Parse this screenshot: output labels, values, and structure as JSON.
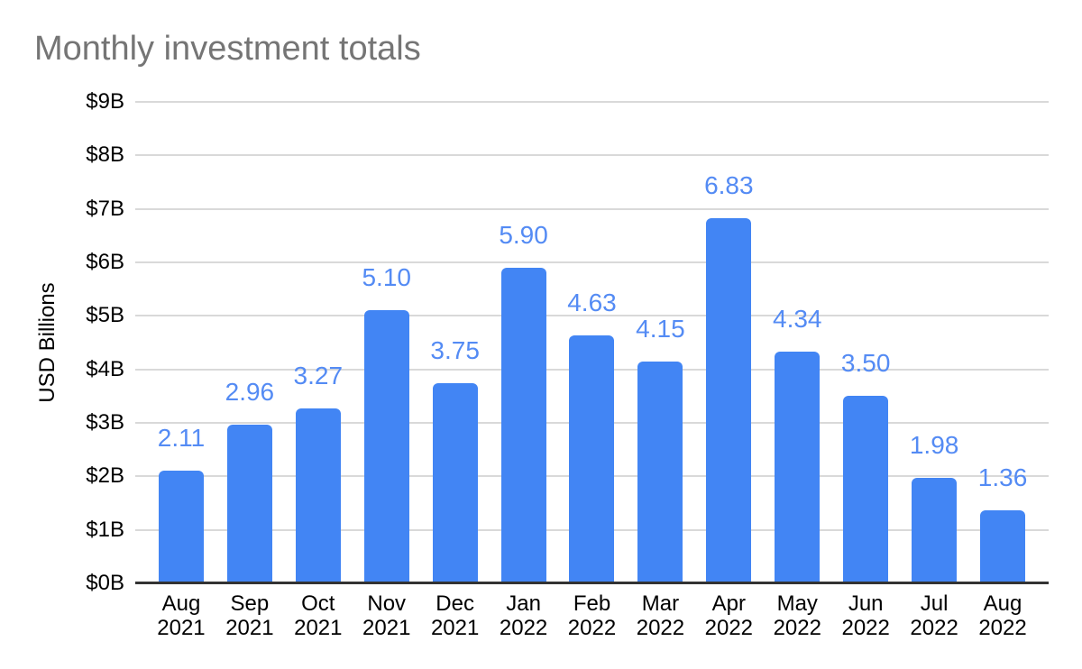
{
  "chart_data": {
    "type": "bar",
    "title": "Monthly investment totals",
    "ylabel": "USD Billions",
    "xlabel": "",
    "categories": [
      "Aug 2021",
      "Sep 2021",
      "Oct 2021",
      "Nov 2021",
      "Dec 2021",
      "Jan 2022",
      "Feb 2022",
      "Mar 2022",
      "Apr 2022",
      "May 2022",
      "Jun 2022",
      "Jul 2022",
      "Aug 2022"
    ],
    "values": [
      2.11,
      2.96,
      3.27,
      5.1,
      3.75,
      5.9,
      4.63,
      4.15,
      6.83,
      4.34,
      3.5,
      1.98,
      1.36
    ],
    "data_labels": [
      "2.11",
      "2.96",
      "3.27",
      "5.10",
      "3.75",
      "5.90",
      "4.63",
      "4.15",
      "6.83",
      "4.34",
      "3.50",
      "1.98",
      "1.36"
    ],
    "ylim": [
      0,
      9
    ],
    "y_tick_labels": [
      "$0B",
      "$1B",
      "$2B",
      "$3B",
      "$4B",
      "$5B",
      "$6B",
      "$7B",
      "$8B",
      "$9B"
    ],
    "grid": true,
    "legend": "none",
    "colors": {
      "bar": "#4285f4",
      "data_label": "#548bf4",
      "title": "#757575",
      "axis_text": "#000000",
      "gridline": "#d9d9d9",
      "axis_line": "#333333",
      "background": "#ffffff"
    }
  }
}
